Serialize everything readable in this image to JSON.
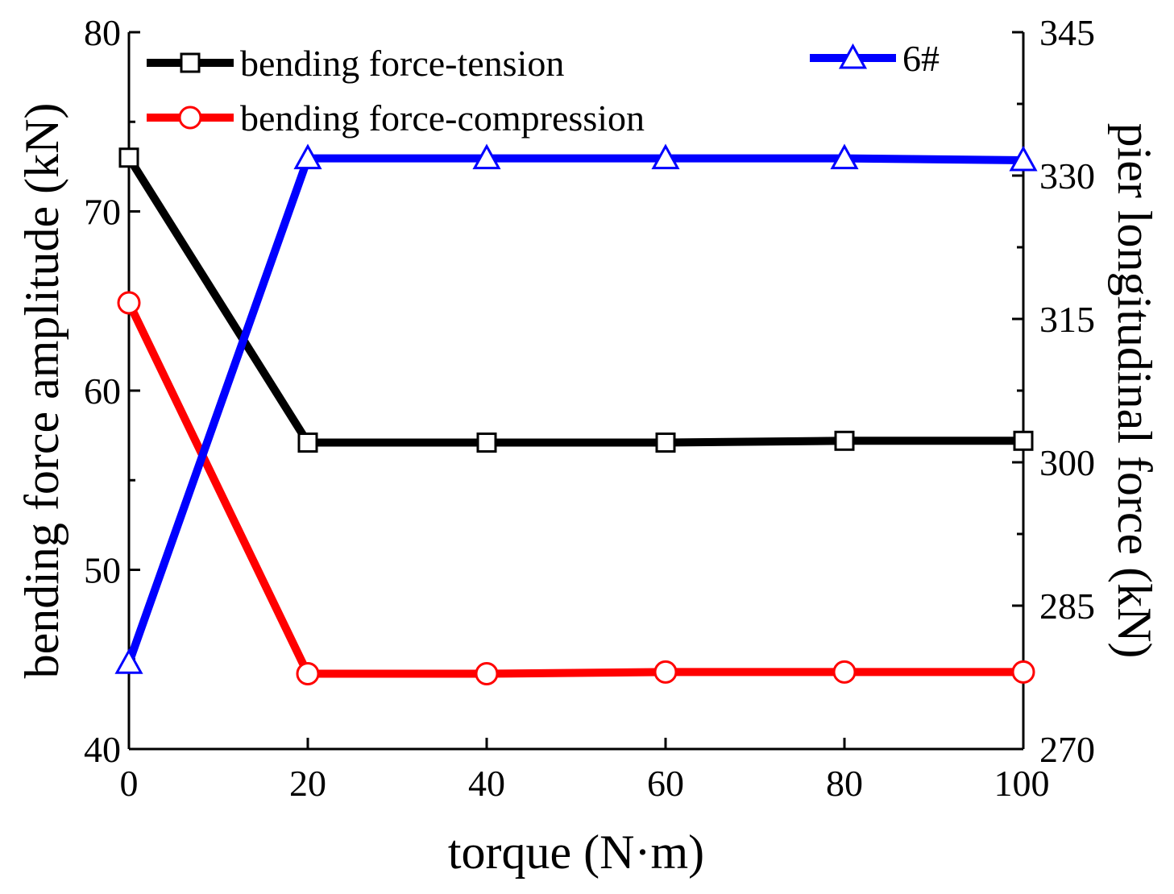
{
  "chart_data": {
    "type": "line",
    "title": "",
    "xlabel": "torque (N·m)",
    "ylabel": "bending force amplitude (kN)",
    "y2label": "pier longitudinal force (kN)",
    "xlim": [
      0,
      100
    ],
    "ylim": [
      40,
      80
    ],
    "y2lim": [
      270,
      345
    ],
    "xticks": [
      0,
      20,
      40,
      60,
      80,
      100
    ],
    "yticks": [
      40,
      50,
      60,
      70,
      80
    ],
    "y2ticks": [
      270,
      285,
      300,
      315,
      330,
      345
    ],
    "grid": false,
    "series": [
      {
        "name": "bending force-tension",
        "axis": "left",
        "color": "#000000",
        "marker": "square",
        "x": [
          0,
          20,
          40,
          60,
          80,
          100
        ],
        "values": [
          73.0,
          57.1,
          57.1,
          57.1,
          57.2,
          57.2
        ]
      },
      {
        "name": "bending force-compression",
        "axis": "left",
        "color": "#ff0000",
        "marker": "circle",
        "x": [
          0,
          20,
          40,
          60,
          80,
          100
        ],
        "values": [
          64.9,
          44.2,
          44.2,
          44.3,
          44.3,
          44.3
        ]
      },
      {
        "name": "6#",
        "axis": "right",
        "color": "#0000ff",
        "marker": "triangle",
        "x": [
          0,
          20,
          40,
          60,
          80,
          100
        ],
        "values": [
          279.0,
          331.8,
          331.8,
          331.8,
          331.8,
          331.6
        ]
      }
    ]
  }
}
